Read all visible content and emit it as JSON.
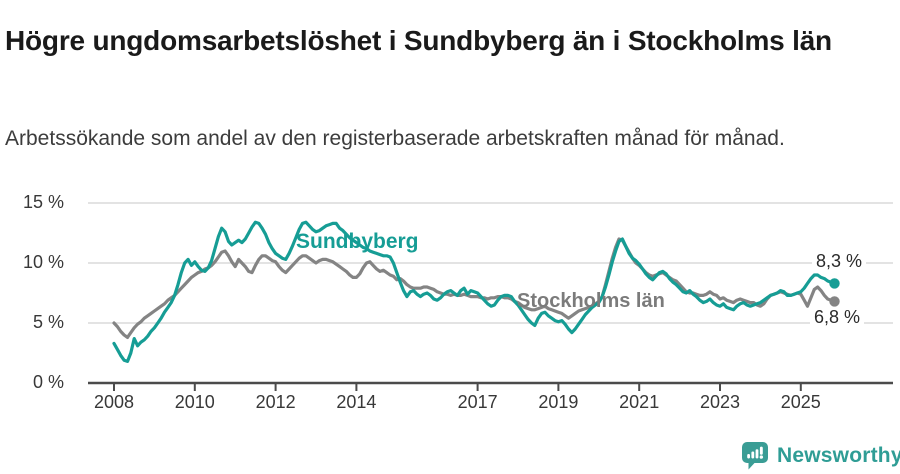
{
  "title": "Högre ungdomsarbetslöshet i Sundbyberg än i Stockholms län",
  "subtitle": "Arbetssökande som andel av den registerbaserade arbetskraften månad för månad.",
  "logo": {
    "name": "Newsworthy"
  },
  "chart_data": {
    "type": "line",
    "title": "Högre ungdomsarbetslöshet i Sundbyberg än i Stockholms län",
    "subtitle": "Arbetssökande som andel av den registerbaserade arbetskraften månad för månad.",
    "unit": "%",
    "x_start": "2008-01",
    "x_end": "2025-11",
    "x_frequency": "monthly",
    "ylim": [
      0,
      15
    ],
    "grid": true,
    "legend_position": "inline-labels",
    "y_ticks": [
      0,
      5,
      10,
      15
    ],
    "y_tick_labels": [
      "0 %",
      "5 %",
      "10 %",
      "15 %"
    ],
    "x_ticks": [
      2008,
      2010,
      2012,
      2014,
      2017,
      2019,
      2021,
      2023,
      2025
    ],
    "colors": {
      "accent": "#169d95",
      "secondary": "#848484",
      "gridline": "#dadada",
      "axis": "#4b4b4b"
    },
    "series": [
      {
        "name": "Sundbyberg",
        "color": "#169d95",
        "end_label": "8,3 %",
        "end_value": 8.3,
        "values": [
          3.3,
          2.8,
          2.3,
          1.9,
          1.8,
          2.5,
          3.7,
          3.1,
          3.4,
          3.6,
          3.9,
          4.3,
          4.6,
          5.0,
          5.4,
          5.9,
          6.3,
          6.7,
          7.3,
          8.2,
          9.2,
          10.0,
          10.3,
          9.8,
          10.1,
          9.7,
          9.4,
          9.3,
          9.6,
          10.2,
          11.2,
          12.2,
          12.9,
          12.6,
          11.8,
          11.5,
          11.7,
          11.9,
          11.7,
          12.0,
          12.5,
          13.0,
          13.4,
          13.3,
          12.9,
          12.4,
          11.7,
          11.2,
          10.8,
          10.6,
          10.4,
          10.3,
          10.8,
          11.4,
          12.1,
          12.8,
          13.3,
          13.4,
          13.1,
          12.8,
          12.6,
          12.7,
          12.9,
          13.1,
          13.2,
          13.3,
          13.3,
          12.9,
          12.7,
          12.4,
          12.1,
          11.9,
          11.7,
          11.5,
          11.3,
          11.2,
          11.0,
          10.9,
          10.8,
          10.7,
          10.6,
          10.6,
          10.5,
          10.0,
          9.2,
          8.4,
          7.7,
          7.2,
          7.6,
          7.7,
          7.4,
          7.2,
          7.4,
          7.5,
          7.3,
          7.0,
          6.9,
          7.1,
          7.4,
          7.6,
          7.7,
          7.5,
          7.3,
          7.7,
          7.9,
          7.4,
          7.7,
          7.6,
          7.5,
          7.2,
          6.9,
          6.6,
          6.4,
          6.5,
          6.9,
          7.2,
          7.3,
          7.3,
          7.2,
          6.8,
          6.5,
          6.1,
          5.7,
          5.3,
          5.0,
          4.8,
          5.4,
          5.8,
          5.9,
          5.6,
          5.4,
          5.2,
          5.1,
          5.2,
          4.9,
          4.5,
          4.2,
          4.5,
          4.9,
          5.3,
          5.7,
          6.0,
          6.3,
          6.5,
          6.7,
          7.2,
          8.0,
          9.0,
          10.1,
          11.0,
          11.8,
          12.0,
          11.4,
          10.8,
          10.4,
          10.2,
          9.9,
          9.5,
          9.1,
          8.8,
          8.6,
          8.9,
          9.2,
          9.3,
          9.1,
          8.7,
          8.4,
          8.2,
          7.9,
          7.6,
          7.5,
          7.7,
          7.4,
          7.2,
          6.9,
          6.7,
          6.8,
          7.0,
          6.7,
          6.5,
          6.4,
          6.6,
          6.3,
          6.2,
          6.1,
          6.4,
          6.6,
          6.7,
          6.5,
          6.4,
          6.5,
          6.6,
          6.7,
          6.9,
          7.1,
          7.3,
          7.4,
          7.5,
          7.7,
          7.6,
          7.3,
          7.3,
          7.4,
          7.5,
          7.6,
          7.9,
          8.3,
          8.7,
          9.0,
          9.0,
          8.8,
          8.7,
          8.5,
          8.4,
          8.3
        ]
      },
      {
        "name": "Stockholms län",
        "color": "#848484",
        "end_label": "6,8 %",
        "end_value": 6.8,
        "values": [
          5.0,
          4.7,
          4.3,
          4.0,
          3.8,
          4.2,
          4.6,
          4.9,
          5.1,
          5.4,
          5.6,
          5.8,
          6.0,
          6.2,
          6.4,
          6.6,
          6.9,
          7.1,
          7.3,
          7.6,
          7.9,
          8.2,
          8.5,
          8.8,
          9.0,
          9.2,
          9.3,
          9.5,
          9.6,
          9.8,
          10.1,
          10.5,
          10.9,
          11.0,
          10.6,
          10.1,
          9.7,
          10.3,
          10.0,
          9.7,
          9.3,
          9.2,
          9.8,
          10.3,
          10.6,
          10.6,
          10.4,
          10.2,
          10.1,
          9.7,
          9.4,
          9.2,
          9.5,
          9.8,
          10.1,
          10.4,
          10.6,
          10.6,
          10.4,
          10.2,
          10.0,
          10.2,
          10.3,
          10.3,
          10.2,
          10.1,
          9.9,
          9.7,
          9.5,
          9.3,
          9.0,
          8.8,
          8.8,
          9.1,
          9.6,
          10.0,
          10.1,
          9.8,
          9.5,
          9.3,
          9.4,
          9.2,
          9.0,
          8.9,
          8.6,
          8.7,
          8.5,
          8.2,
          8.0,
          7.9,
          7.9,
          7.9,
          8.0,
          8.0,
          7.9,
          7.8,
          7.6,
          7.5,
          7.4,
          7.4,
          7.3,
          7.4,
          7.3,
          7.3,
          7.4,
          7.3,
          7.2,
          7.2,
          7.2,
          7.1,
          7.1,
          7.0,
          7.1,
          7.1,
          7.2,
          7.2,
          7.1,
          7.1,
          7.0,
          6.8,
          6.7,
          6.5,
          6.3,
          6.2,
          6.1,
          6.1,
          6.2,
          6.3,
          6.4,
          6.2,
          6.1,
          6.0,
          5.9,
          5.8,
          5.6,
          5.4,
          5.6,
          5.8,
          6.0,
          6.1,
          6.2,
          6.3,
          6.4,
          6.6,
          6.8,
          7.2,
          8.2,
          9.3,
          10.4,
          11.3,
          12.0,
          11.9,
          11.4,
          10.9,
          10.4,
          10.0,
          9.8,
          9.5,
          9.2,
          9.0,
          8.9,
          9.0,
          9.1,
          9.2,
          9.0,
          8.8,
          8.6,
          8.5,
          8.2,
          7.9,
          7.6,
          7.5,
          7.5,
          7.4,
          7.3,
          7.3,
          7.4,
          7.6,
          7.4,
          7.3,
          7.0,
          7.1,
          6.9,
          6.8,
          6.7,
          6.9,
          7.0,
          6.9,
          6.8,
          6.7,
          6.7,
          6.5,
          6.4,
          6.6,
          7.0,
          7.3,
          7.4,
          7.5,
          7.6,
          7.5,
          7.4,
          7.3,
          7.4,
          7.5,
          7.4,
          6.9,
          6.4,
          7.1,
          7.8,
          8.0,
          7.7,
          7.3,
          7.0,
          6.9,
          6.8
        ]
      }
    ]
  }
}
